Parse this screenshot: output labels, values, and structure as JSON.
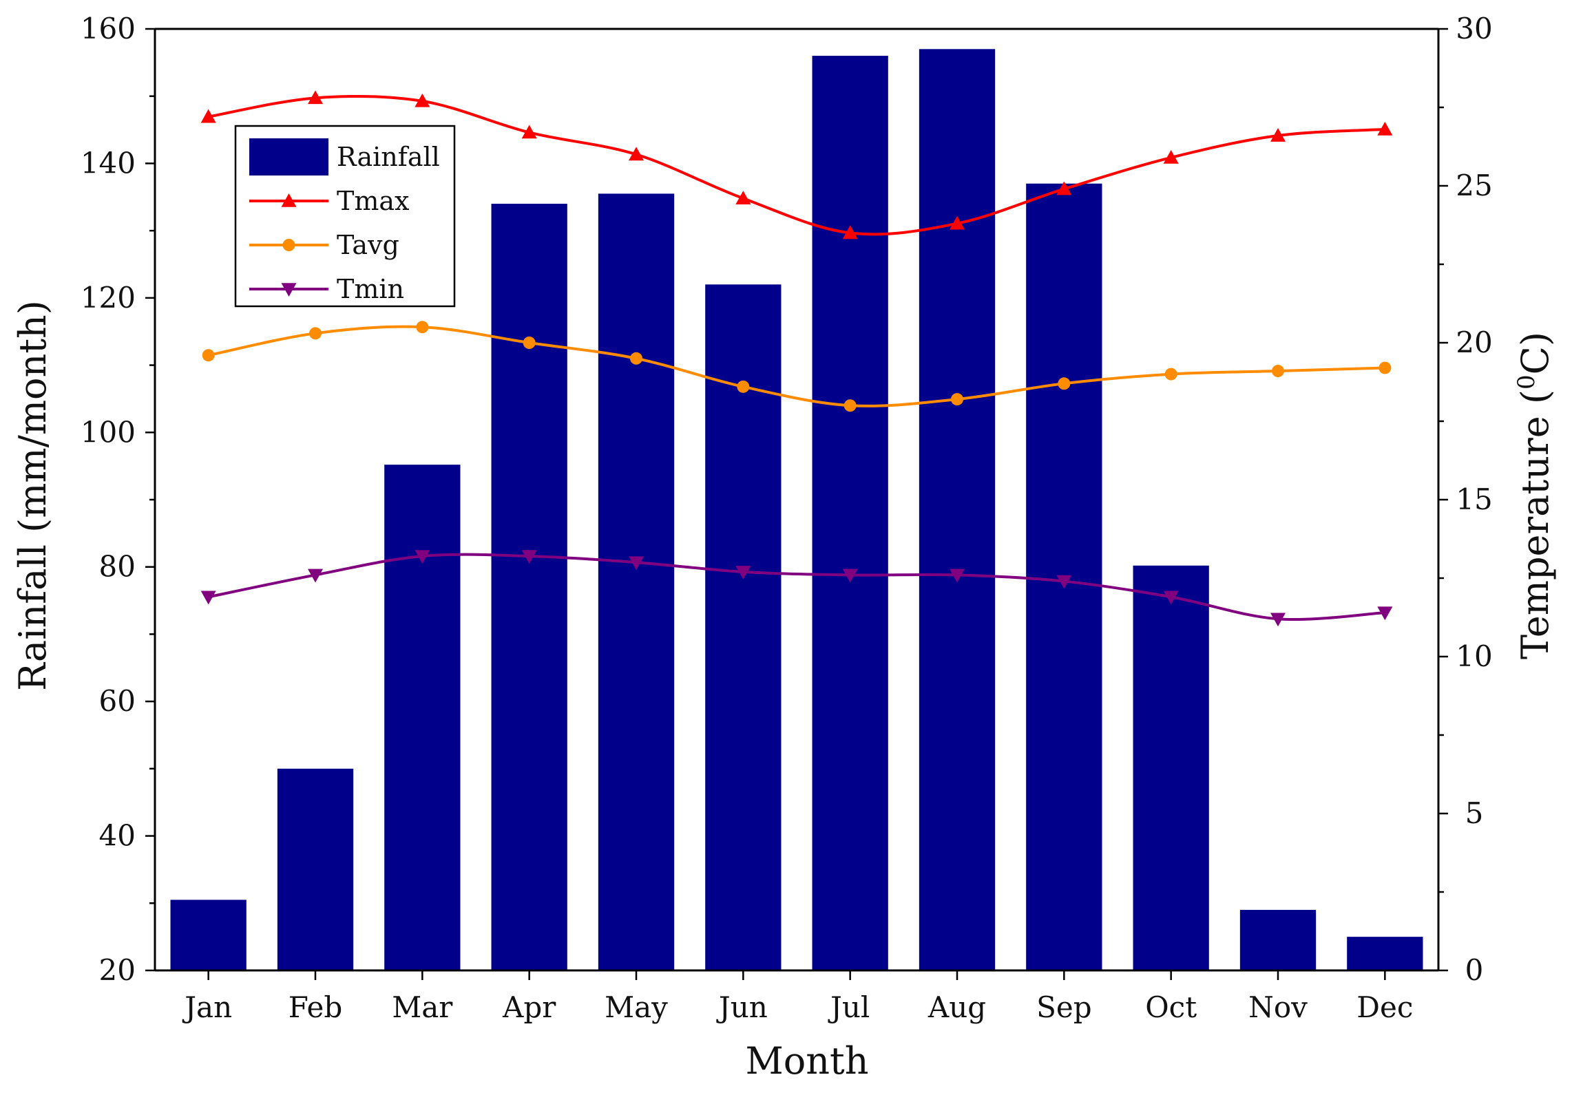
{
  "chart_data": {
    "type": "bar+line",
    "categories": [
      "Jan",
      "Feb",
      "Mar",
      "Apr",
      "May",
      "Jun",
      "Jul",
      "Aug",
      "Sep",
      "Oct",
      "Nov",
      "Dec"
    ],
    "xlabel": "Month",
    "ylabel": "Rainfall (mm/month)",
    "y2label_main": "Temperature (",
    "y2label_sup": "0",
    "y2label_unit": "C)",
    "ylim": [
      20,
      160
    ],
    "y2lim": [
      0,
      30
    ],
    "yticks": [
      "20",
      "40",
      "60",
      "80",
      "100",
      "120",
      "140",
      "160"
    ],
    "y2ticks": [
      "0",
      "5",
      "10",
      "15",
      "20",
      "25",
      "30"
    ],
    "legend_position": "top-left",
    "series": [
      {
        "name": "Rainfall",
        "type": "bar",
        "axis": "left",
        "color": "#00008B",
        "values": [
          30.5,
          50,
          95.2,
          134,
          135.5,
          122,
          156,
          157,
          137,
          80.2,
          29,
          25
        ]
      },
      {
        "name": "Tmax",
        "type": "line",
        "axis": "right",
        "color": "#FF0000",
        "marker": "triangle-up",
        "values": [
          27.2,
          27.8,
          27.7,
          26.7,
          26.0,
          24.6,
          23.5,
          23.8,
          24.9,
          25.9,
          26.6,
          26.8
        ]
      },
      {
        "name": "Tavg",
        "type": "line",
        "axis": "right",
        "color": "#FF8C00",
        "marker": "circle",
        "values": [
          19.6,
          20.3,
          20.5,
          20.0,
          19.5,
          18.6,
          18.0,
          18.2,
          18.7,
          19.0,
          19.1,
          19.2
        ]
      },
      {
        "name": "Tmin",
        "type": "line",
        "axis": "right",
        "color": "#800080",
        "marker": "triangle-down",
        "values": [
          11.9,
          12.6,
          13.2,
          13.2,
          13.0,
          12.7,
          12.6,
          12.6,
          12.4,
          11.9,
          11.2,
          11.4
        ]
      }
    ]
  }
}
